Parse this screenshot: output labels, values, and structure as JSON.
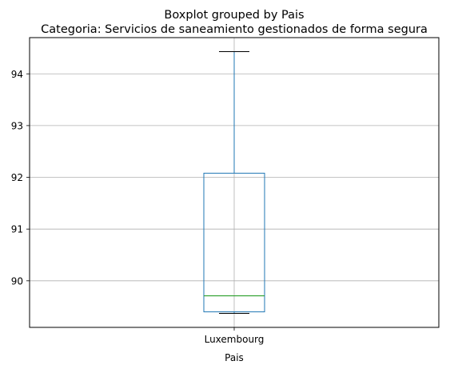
{
  "chart_data": {
    "type": "boxplot",
    "suptitle": "Boxplot grouped by Pais",
    "title": "Categoria: Servicios de saneamiento gestionados de forma segura",
    "xlabel": "Pais",
    "ylabel": "",
    "categories": [
      "Luxembourg"
    ],
    "boxes": [
      {
        "category": "Luxembourg",
        "whisker_low": 89.37,
        "q1": 89.4,
        "median": 89.71,
        "q3": 92.08,
        "whisker_high": 94.43
      }
    ],
    "ylim": [
      89.1,
      94.7
    ],
    "yticks": [
      90,
      91,
      92,
      93,
      94
    ],
    "grid": true,
    "colors": {
      "box": "#1f77b4",
      "median": "#2ca02c",
      "cap": "#000000",
      "grid": "#b0b0b0"
    }
  }
}
